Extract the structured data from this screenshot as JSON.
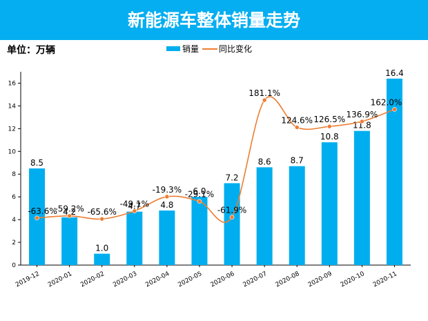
{
  "chart_data": {
    "type": "bar",
    "title": "新能源车整体销量走势",
    "unit_label": "单位：万辆",
    "categories": [
      "2019-12",
      "2020-01",
      "2020-02",
      "2020-03",
      "2020-04",
      "2020-05",
      "2020-06",
      "2020-07",
      "2020-08",
      "2020-09",
      "2020-10",
      "2020-11"
    ],
    "series": [
      {
        "name": "销量",
        "type": "bar",
        "values": [
          8.5,
          4.2,
          1.0,
          4.7,
          4.8,
          6.0,
          7.2,
          8.6,
          8.7,
          10.8,
          11.8,
          16.4
        ],
        "value_labels": [
          "8.5",
          "4.2",
          "1.0",
          "4.7",
          "4.8",
          "6.0",
          "7.2",
          "8.6",
          "8.7",
          "10.8",
          "11.8",
          "16.4"
        ]
      },
      {
        "name": "同比变化",
        "type": "line",
        "values": [
          -63.6,
          -59.2,
          -65.6,
          -49.1,
          -19.3,
          -29.1,
          -61.9,
          181.1,
          124.6,
          126.5,
          136.9,
          162.0
        ],
        "value_labels": [
          "-63.6%",
          "-59.2%",
          "-65.6%",
          "-49.1%",
          "-19.3%",
          "-29.1%",
          "-61.9%",
          "181.1%",
          "124.6%",
          "126.5%",
          "136.9%",
          "162.0%"
        ]
      }
    ],
    "ylim": [
      0,
      17
    ],
    "yticks": [
      0,
      2,
      4,
      6,
      8,
      10,
      12,
      14,
      16
    ],
    "legend_position": "top-center",
    "colors": {
      "banner": "#05aef0",
      "bar": "#00aeef",
      "line": "#ed7d31",
      "marker": "#ed7d31"
    }
  }
}
